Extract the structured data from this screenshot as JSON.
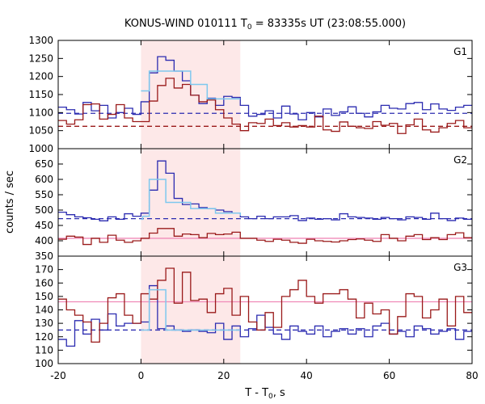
{
  "chart_data": {
    "type": "line",
    "title_main": "KONUS-WIND 010111 T",
    "title_sub": "0",
    "title_rest": " = 83335s UT (23:08:55.000)",
    "xlabel_main": "T - T",
    "xlabel_sub": "0",
    "xlabel_rest": ", s",
    "ylabel": "counts / sec",
    "xlim": [
      -20,
      80
    ],
    "xticks": [
      -20,
      0,
      20,
      40,
      60,
      80
    ],
    "highlight": {
      "x0": 0,
      "x1": 24,
      "color": "#fde8e8"
    },
    "colors": {
      "blue": "#2b2bb0",
      "red": "#9a1a1a",
      "cyan": "#7ec8ee",
      "pink": "#f08ab8",
      "axis": "#000000"
    },
    "panels": [
      {
        "name": "G1",
        "ylim": [
          1000,
          1300
        ],
        "yticks": [
          1000,
          1050,
          1100,
          1150,
          1200,
          1250,
          1300
        ],
        "bins": [
          -20,
          -18,
          -16,
          -14,
          -12,
          -10,
          -8,
          -6,
          -4,
          -2,
          0,
          2,
          4,
          6,
          8,
          10,
          12,
          14,
          16,
          18,
          20,
          22,
          24,
          26,
          28,
          30,
          32,
          34,
          36,
          38,
          40,
          42,
          44,
          46,
          48,
          50,
          52,
          54,
          56,
          58,
          60,
          62,
          64,
          66,
          68,
          70,
          72,
          74,
          76,
          78,
          80
        ],
        "series": [
          {
            "color": "blue",
            "values": [
              1115,
              1108,
              1096,
              1128,
              1105,
              1120,
              1085,
              1100,
              1112,
              1095,
              1130,
              1210,
              1255,
              1245,
              1215,
              1188,
              1148,
              1125,
              1140,
              1120,
              1145,
              1142,
              1120,
              1090,
              1095,
              1105,
              1085,
              1118,
              1096,
              1080,
              1100,
              1088,
              1110,
              1092,
              1102,
              1116,
              1098,
              1088,
              1102,
              1120,
              1112,
              1110,
              1125,
              1128,
              1108,
              1124,
              1110,
              1106,
              1115,
              1120
            ]
          },
          {
            "color": "red",
            "values": [
              1078,
              1068,
              1080,
              1122,
              1124,
              1082,
              1095,
              1122,
              1085,
              1075,
              1075,
              1132,
              1175,
              1195,
              1168,
              1178,
              1148,
              1130,
              1135,
              1108,
              1085,
              1068,
              1050,
              1072,
              1070,
              1082,
              1064,
              1072,
              1060,
              1064,
              1060,
              1090,
              1052,
              1048,
              1074,
              1062,
              1058,
              1056,
              1075,
              1065,
              1070,
              1042,
              1066,
              1082,
              1052,
              1046,
              1058,
              1070,
              1078,
              1058
            ]
          }
        ],
        "bg_lines": [
          {
            "color": "blue",
            "dashed": true,
            "level": 1098
          },
          {
            "color": "red",
            "dashed": true,
            "level": 1062
          }
        ],
        "fit": {
          "from": 0,
          "to": 24,
          "steps": [
            [
              0,
              1160
            ],
            [
              2,
              1215
            ],
            [
              12,
              1178
            ],
            [
              16,
              1138
            ],
            [
              24,
              1138
            ]
          ]
        }
      },
      {
        "name": "G2",
        "ylim": [
          350,
          700
        ],
        "yticks": [
          350,
          400,
          450,
          500,
          550,
          600,
          650
        ],
        "bins": [
          -20,
          -18,
          -16,
          -14,
          -12,
          -10,
          -8,
          -6,
          -4,
          -2,
          0,
          2,
          4,
          6,
          8,
          10,
          12,
          14,
          16,
          18,
          20,
          22,
          24,
          26,
          28,
          30,
          32,
          34,
          36,
          38,
          40,
          42,
          44,
          46,
          48,
          50,
          52,
          54,
          56,
          58,
          60,
          62,
          64,
          66,
          68,
          70,
          72,
          74,
          76,
          78,
          80
        ],
        "series": [
          {
            "color": "blue",
            "values": [
              493,
              485,
              478,
              475,
              470,
              465,
              478,
              470,
              488,
              480,
              490,
              565,
              660,
              620,
              538,
              518,
              520,
              508,
              505,
              500,
              495,
              490,
              478,
              472,
              480,
              472,
              478,
              478,
              482,
              466,
              474,
              470,
              472,
              468,
              488,
              478,
              476,
              474,
              470,
              476,
              472,
              468,
              478,
              476,
              470,
              490,
              472,
              466,
              474,
              470
            ]
          },
          {
            "color": "red",
            "values": [
              405,
              415,
              412,
              388,
              408,
              395,
              418,
              402,
              395,
              400,
              408,
              425,
              440,
              440,
              415,
              422,
              420,
              410,
              424,
              420,
              422,
              428,
              408,
              408,
              402,
              398,
              405,
              402,
              395,
              392,
              405,
              400,
              398,
              396,
              400,
              404,
              406,
              402,
              398,
              420,
              408,
              400,
              415,
              420,
              404,
              410,
              404,
              420,
              426,
              410
            ]
          }
        ],
        "bg_lines": [
          {
            "color": "blue",
            "dashed": true,
            "level": 472
          },
          {
            "color": "pink",
            "dashed": false,
            "level": 408
          }
        ],
        "fit": {
          "from": 0,
          "to": 24,
          "steps": [
            [
              0,
              470
            ],
            [
              0.4,
              480
            ],
            [
              2,
              600
            ],
            [
              6,
              525
            ],
            [
              12,
              505
            ],
            [
              18,
              490
            ],
            [
              24,
              482
            ]
          ]
        }
      },
      {
        "name": "G3",
        "ylim": [
          100,
          180
        ],
        "yticks": [
          100,
          110,
          120,
          130,
          140,
          150,
          160,
          170
        ],
        "bins": [
          -20,
          -18,
          -16,
          -14,
          -12,
          -10,
          -8,
          -6,
          -4,
          -2,
          0,
          2,
          4,
          6,
          8,
          10,
          12,
          14,
          16,
          18,
          20,
          22,
          24,
          26,
          28,
          30,
          32,
          34,
          36,
          38,
          40,
          42,
          44,
          46,
          48,
          50,
          52,
          54,
          56,
          58,
          60,
          62,
          64,
          66,
          68,
          70,
          72,
          74,
          76,
          78,
          80
        ],
        "series": [
          {
            "color": "blue",
            "values": [
              118,
              113,
              132,
              122,
              133,
              125,
              137,
              128,
              130,
              130,
              131,
              158,
              126,
              128,
              125,
              124,
              125,
              124,
              123,
              130,
              118,
              128,
              120,
              126,
              136,
              127,
              122,
              118,
              128,
              124,
              122,
              128,
              120,
              124,
              126,
              122,
              126,
              120,
              128,
              130,
              122,
              124,
              120,
              128,
              126,
              122,
              124,
              126,
              118,
              124
            ]
          },
          {
            "color": "red",
            "values": [
              148,
              140,
              136,
              131,
              116,
              130,
              149,
              152,
              136,
              130,
              152,
              148,
              162,
              171,
              145,
              168,
              147,
              148,
              138,
              152,
              156,
              136,
              150,
              131,
              125,
              138,
              127,
              150,
              155,
              162,
              150,
              145,
              152,
              152,
              155,
              148,
              134,
              145,
              137,
              140,
              122,
              135,
              152,
              150,
              134,
              140,
              148,
              128,
              150,
              138
            ]
          }
        ],
        "bg_lines": [
          {
            "color": "blue",
            "dashed": true,
            "level": 125
          },
          {
            "color": "pink",
            "dashed": false,
            "level": 146
          }
        ],
        "fit": {
          "from": 0,
          "to": 24,
          "steps": [
            [
              0,
              125
            ],
            [
              1,
              125
            ],
            [
              2,
              155
            ],
            [
              6,
              125
            ],
            [
              24,
              125
            ]
          ]
        }
      }
    ]
  }
}
